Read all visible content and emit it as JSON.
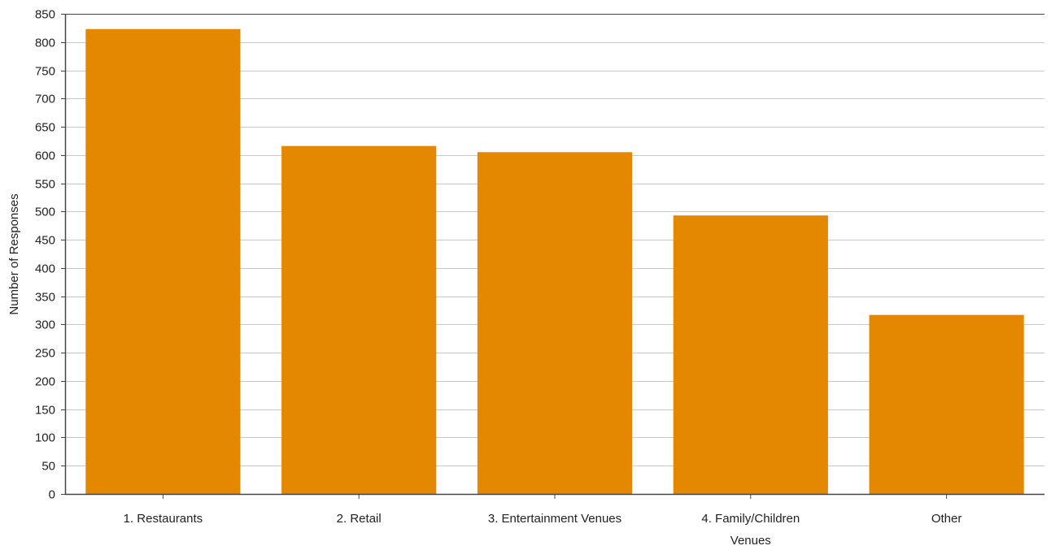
{
  "chart_data": {
    "type": "bar",
    "title": "",
    "xlabel": "",
    "ylabel": "Number of Responses",
    "categories": [
      [
        "1. Restaurants"
      ],
      [
        "2. Retail"
      ],
      [
        "3. Entertainment Venues"
      ],
      [
        "4. Family/Children",
        "Venues"
      ],
      [
        "Other"
      ]
    ],
    "values": [
      823,
      616,
      605,
      493,
      317
    ],
    "ylim": [
      0,
      850
    ],
    "yticks": [
      "0",
      "50",
      "100",
      "150",
      "200",
      "250",
      "300",
      "350",
      "400",
      "450",
      "500",
      "550",
      "600",
      "650",
      "700",
      "750",
      "800",
      "850"
    ],
    "grid": true,
    "legend": "none",
    "colors": {
      "bar": "#E38800",
      "grid": "#C8C8C8",
      "axis": "#444444",
      "frame": "#444444"
    }
  }
}
